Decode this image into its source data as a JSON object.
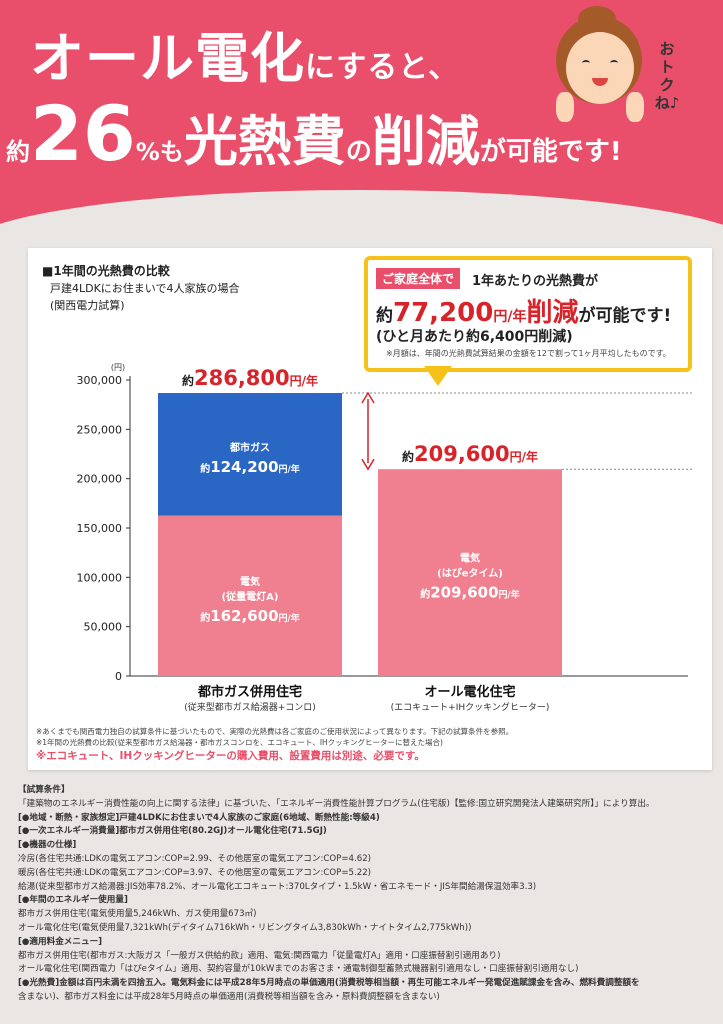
{
  "header": {
    "line1_main": "オール電化",
    "line1_tail": "にすると、",
    "line2_prefix": "約",
    "line2_percent": "26",
    "line2_mo": "%も",
    "line2_kounetsuhi": "光熱費",
    "line2_no": "の",
    "line2_sakugen": "削減",
    "line2_tail": "が可能です!",
    "speech": "おトクね♪"
  },
  "comparison": {
    "title": "■1年間の光熱費の比較",
    "subtitle_1": "戸建4LDKにお住まいで4人家族の場合",
    "subtitle_2": "(関西電力試算)"
  },
  "callout": {
    "tag": "ご家庭全体で",
    "line1": "1年あたりの光熱費が",
    "prefix": "約",
    "amount": "77,200",
    "unit": "円/年",
    "reduction": "削減",
    "tail": "が可能です!",
    "monthly": "(ひと月あたり約6,400円削減)",
    "note": "※月額は、年間の光熱費試算結果の金額を12で割って1ヶ月平均したものです。"
  },
  "chart_data": {
    "type": "bar",
    "stacked": true,
    "ylabel": "(円)",
    "ylim": [
      0,
      300000
    ],
    "yticks": [
      0,
      50000,
      100000,
      150000,
      200000,
      250000,
      300000
    ],
    "yticklabels": [
      "0",
      "50,000",
      "100,000",
      "150,000",
      "200,000",
      "250,000",
      "300,000"
    ],
    "categories": [
      "都市ガス併用住宅",
      "オール電化住宅"
    ],
    "category_sublabels": [
      "(従来型都市ガス給湯器+コンロ)",
      "(エコキュート+IHクッキングヒーター)"
    ],
    "totals": [
      286800,
      209600
    ],
    "total_labels": [
      {
        "prefix": "約",
        "amount": "286,800",
        "unit": "円/年"
      },
      {
        "prefix": "約",
        "amount": "209,600",
        "unit": "円/年"
      }
    ],
    "segments": [
      {
        "category": 0,
        "from": 0,
        "to": 162600,
        "color": "#f07f8f",
        "label_lines": [
          "電気",
          "(従量電灯A)"
        ],
        "amount_prefix": "約",
        "amount": "162,600",
        "amount_unit": "円/年"
      },
      {
        "category": 0,
        "from": 162600,
        "to": 286800,
        "color": "#2a66c4",
        "label_lines": [
          "都市ガス"
        ],
        "amount_prefix": "約",
        "amount": "124,200",
        "amount_unit": "円/年"
      },
      {
        "category": 1,
        "from": 0,
        "to": 209600,
        "color": "#f07f8f",
        "label_lines": [
          "電気",
          "(はぴeタイム)"
        ],
        "amount_prefix": "約",
        "amount": "209,600",
        "amount_unit": "円/年"
      }
    ],
    "grid": false,
    "legend": "none"
  },
  "notes": {
    "note1": "※あくまでも関西電力独自の試算条件に基づいたもので、実際の光熱費は各ご家庭のご使用状況によって異なります。下記の試算条件を参照。",
    "note2": "※1年間の光熱費の比較(従来型都市ガス給湯器・都市ガスコンロを、エコキュート、IHクッキングヒーターに替えた場合)",
    "warning": "※エコキュート、IHクッキングヒーターの購入費用、設置費用は別途、必要です。"
  },
  "conditions": {
    "lines": [
      "【試算条件】",
      "「建築物のエネルギー消費性能の向上に関する法律」に基づいた、「エネルギー消費性能計算プログラム(住宅版)【監修:国立研究開発法人建築研究所】」により算出。",
      "[●地域・断熱・家族想定]戸建4LDKにお住まいで4人家族のご家庭(6地域、断熱性能:等級4)",
      "[●一次エネルギー消費量]都市ガス併用住宅(80.2GJ)オール電化住宅(71.5GJ)",
      "[●機器の仕様]",
      "冷房(各住宅共通:LDKの電気エアコン:COP=2.99、その他居室の電気エアコン:COP=4.62)",
      "暖房(各住宅共通:LDKの電気エアコン:COP=3.97、その他居室の電気エアコン:COP=5.22)",
      "給湯(従来型都市ガス給湯器:JIS効率78.2%、オール電化エコキュート:370Lタイプ・1.5kW・省エネモード・JIS年間給湯保温効率3.3)",
      "[●年間のエネルギー使用量]",
      "都市ガス併用住宅(電気使用量5,246kWh、ガス使用量673㎥)",
      "オール電化住宅(電気使用量7,321kWh(デイタイム716kWh・リビングタイム3,830kWh・ナイトタイム2,775kWh))",
      "[●適用料金メニュー]",
      "都市ガス併用住宅(都市ガス:大阪ガス「一般ガス供給約款」適用、電気:関西電力「従量電灯A」適用・口座振替割引適用あり)",
      "オール電化住宅(関西電力「はぴeタイム」適用、契約容量が10kWまでのお客さま・通電制御型蓄熱式機器割引適用なし・口座振替割引適用なし)",
      "[●光熱費]金額は百円未満を四捨五入。電気料金には平成28年5月時点の単価適用(消費税等相当額・再生可能エネルギー発電促進賦課金を含み、燃料費調整額を",
      "含まない)、都市ガス料金には平成28年5月時点の単価適用(消費税等相当額を含み・原料費調整額を含まない)"
    ]
  },
  "colors": {
    "brand_pink": "#e94f6a",
    "gas_blue": "#2a66c4",
    "electric_pink": "#f07f8f",
    "callout_yellow": "#f6c21a",
    "accent_red": "#d8232a"
  }
}
